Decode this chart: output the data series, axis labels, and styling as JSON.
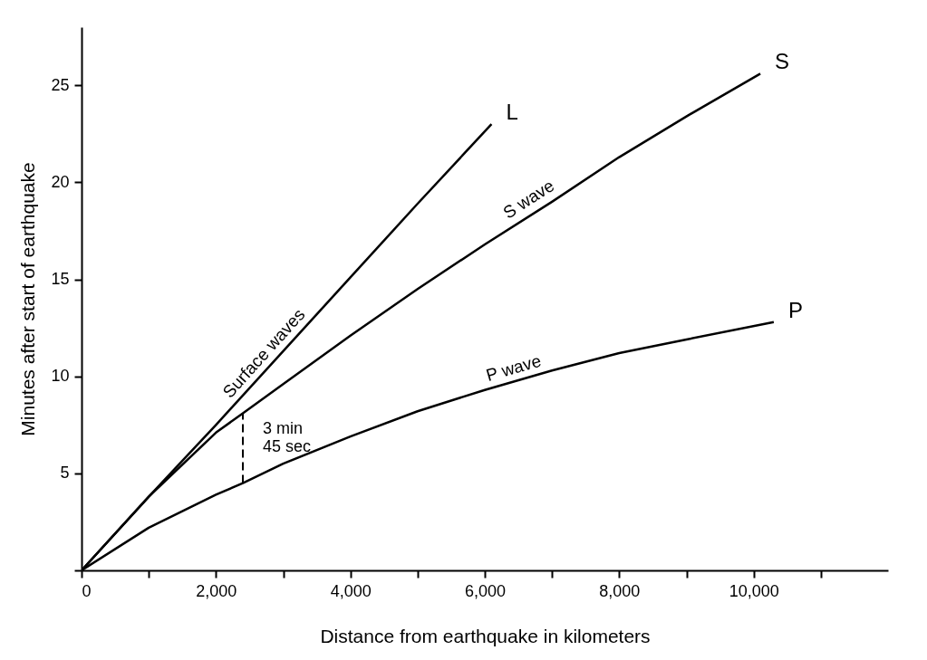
{
  "chart_data": {
    "type": "line",
    "xlabel": "Distance from earthquake in kilometers",
    "ylabel": "Minutes after start of earthquake",
    "xlim": [
      0,
      12000
    ],
    "ylim": [
      0,
      28
    ],
    "xticks": [
      {
        "value": 0,
        "label": "0"
      },
      {
        "value": 1000,
        "label": null
      },
      {
        "value": 2000,
        "label": "2,000"
      },
      {
        "value": 3000,
        "label": null
      },
      {
        "value": 4000,
        "label": "4,000"
      },
      {
        "value": 5000,
        "label": null
      },
      {
        "value": 6000,
        "label": "6,000"
      },
      {
        "value": 7000,
        "label": null
      },
      {
        "value": 8000,
        "label": "8,000"
      },
      {
        "value": 9000,
        "label": null
      },
      {
        "value": 10000,
        "label": "10,000"
      },
      {
        "value": 11000,
        "label": null
      }
    ],
    "yticks": [
      {
        "value": 0,
        "label": null
      },
      5,
      10,
      15,
      20,
      25
    ],
    "grid": false,
    "legend": false,
    "line_style": "solid",
    "series": [
      {
        "name": "Surface waves",
        "color": "#000000",
        "x": [
          0,
          1000,
          2000,
          3000,
          4000,
          5000,
          6100
        ],
        "values": [
          0,
          3.8,
          7.5,
          11.3,
          15.1,
          18.9,
          23
        ]
      },
      {
        "name": "S wave",
        "color": "#000000",
        "x": [
          0,
          1000,
          2000,
          2400,
          3000,
          4000,
          5000,
          6000,
          7000,
          8000,
          9000,
          10100
        ],
        "values": [
          0,
          3.8,
          7.1,
          8.1,
          9.6,
          12.1,
          14.5,
          16.8,
          19.0,
          21.3,
          23.4,
          25.6
        ]
      },
      {
        "name": "P wave",
        "color": "#000000",
        "x": [
          0,
          1000,
          2000,
          2400,
          3000,
          4000,
          5000,
          6000,
          7000,
          8000,
          9000,
          10300
        ],
        "values": [
          0,
          2.2,
          3.9,
          4.5,
          5.5,
          6.9,
          8.2,
          9.3,
          10.3,
          11.2,
          11.9,
          12.8
        ]
      }
    ],
    "annotations": [
      {
        "text": "L",
        "x": 6100,
        "y": 23
      },
      {
        "text": "S",
        "x": 10100,
        "y": 25.6
      },
      {
        "text": "P",
        "x": 10300,
        "y": 12.8
      },
      {
        "text": "3 min\n45 sec",
        "x": 2400,
        "y": 8.1
      }
    ]
  }
}
